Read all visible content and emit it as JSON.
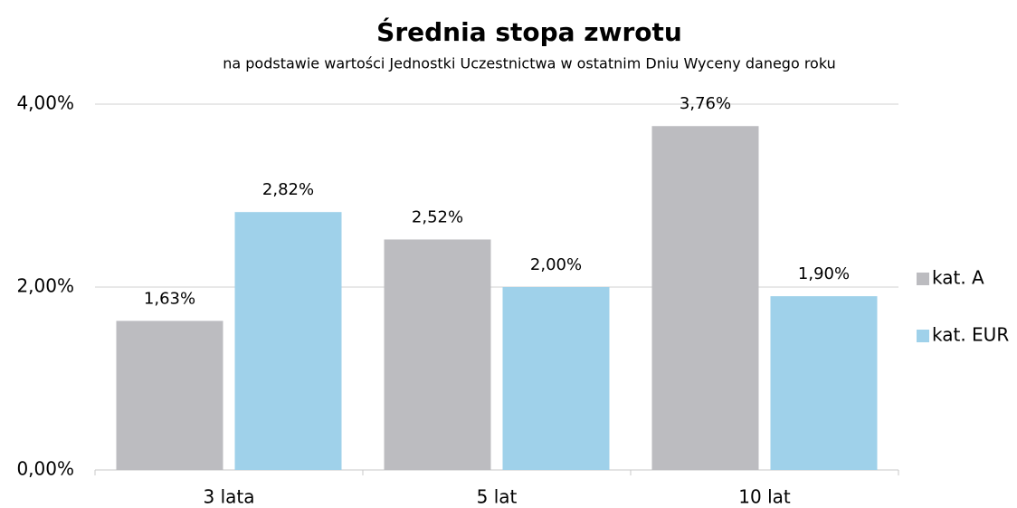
{
  "chart_data": {
    "type": "bar",
    "title": "Średnia stopa zwrotu",
    "subtitle": "na podstawie wartości Jednostki Uczestnictwa w ostatnim Dniu Wyceny danego roku",
    "categories": [
      "3 lata",
      "5 lat",
      "10 lat"
    ],
    "series": [
      {
        "name": "kat. A",
        "color": "#bcbcc0",
        "values": [
          1.63,
          2.52,
          3.76
        ],
        "value_labels": [
          "1,63%",
          "2,52%",
          "3,76%"
        ]
      },
      {
        "name": "kat. EUR",
        "color": "#9fd1ea",
        "values": [
          2.82,
          2.0,
          1.9
        ],
        "value_labels": [
          "2,82%",
          "2,00%",
          "1,90%"
        ]
      }
    ],
    "ylim": [
      0,
      4
    ],
    "yticks": [
      {
        "value": 0,
        "label": "0,00%"
      },
      {
        "value": 2,
        "label": "2,00%"
      },
      {
        "value": 4,
        "label": "4,00%"
      }
    ],
    "grid": true,
    "legend": "right"
  }
}
